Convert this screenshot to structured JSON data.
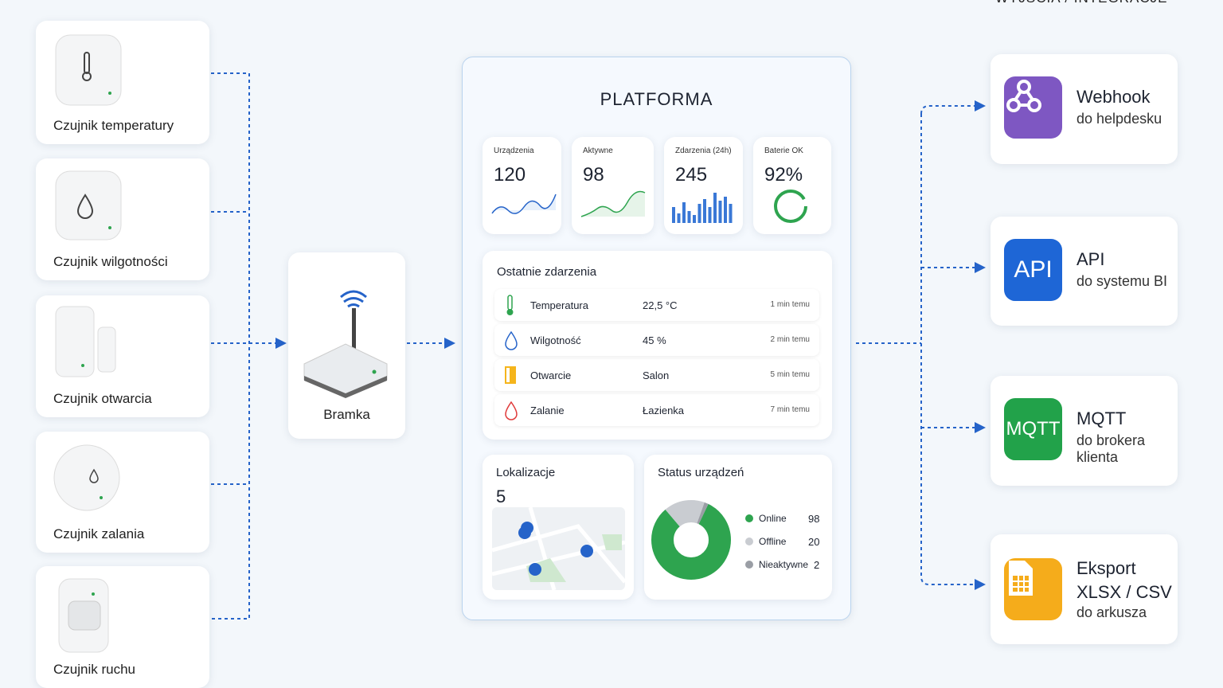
{
  "header": {
    "title": "WYJŚCIA / INTEGRACJE"
  },
  "sensors": [
    {
      "label": "Czujnik temperatury"
    },
    {
      "label": "Czujnik wilgotności"
    },
    {
      "label": "Czujnik otwarcia"
    },
    {
      "label": "Czujnik zalania"
    },
    {
      "label": "Czujnik ruchu"
    }
  ],
  "gateway": {
    "label": "Bramka"
  },
  "platform": {
    "title": "PLATFORMA",
    "kpis": [
      {
        "label": "Urządzenia",
        "value": "120"
      },
      {
        "label": "Aktywne",
        "value": "98"
      },
      {
        "label": "Zdarzenia (24h)",
        "value": "245"
      },
      {
        "label": "Baterie OK",
        "value": "92%"
      }
    ],
    "events": {
      "title": "Ostatnie zdarzenia",
      "rows": [
        [
          "Temperatura",
          "22,5 °C",
          "1 min temu"
        ],
        [
          "Wilgotność",
          "45 %",
          "2 min temu"
        ],
        [
          "Otwarcie",
          "Salon",
          "5 min temu"
        ],
        [
          "Zalanie",
          "Łazienka",
          "7 min temu"
        ]
      ]
    },
    "locations": {
      "title": "Lokalizacje",
      "count": "5"
    },
    "status": {
      "title": "Status urządzeń",
      "items": [
        {
          "name": "Online",
          "value": 98,
          "color": "#2ea44f"
        },
        {
          "name": "Offline",
          "value": 20,
          "color": "#c9ccd1"
        },
        {
          "name": "Nieaktywne",
          "value": 2,
          "color": "#9a9ea5"
        }
      ]
    }
  },
  "outputs": [
    {
      "title": "Webhook",
      "lines": [
        "do helpdesku"
      ]
    },
    {
      "icon": "API",
      "title": "API",
      "lines": [
        "do systemu BI"
      ]
    },
    {
      "icon": "MQTT",
      "title": "MQTT",
      "lines": [
        "do brokera klienta"
      ]
    },
    {
      "title": "Eksport",
      "lines": [
        "XLSX / CSV",
        "do arkusza"
      ]
    }
  ]
}
